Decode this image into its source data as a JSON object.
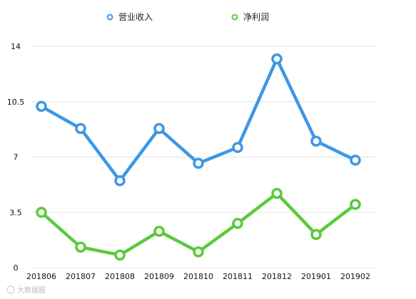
{
  "chart_data": {
    "type": "line",
    "categories": [
      "201806",
      "201807",
      "201808",
      "201809",
      "201810",
      "201811",
      "201812",
      "201901",
      "201902"
    ],
    "series": [
      {
        "name": "营业收入",
        "color": "#3d97e6",
        "values": [
          10.2,
          8.8,
          5.5,
          8.8,
          6.6,
          7.6,
          13.2,
          8.0,
          6.8
        ]
      },
      {
        "name": "净利润",
        "color": "#5cc93a",
        "values": [
          3.5,
          1.3,
          0.8,
          2.3,
          1.0,
          2.8,
          4.7,
          2.1,
          4.0
        ]
      }
    ],
    "yticks": [
      "0",
      "3.5",
      "7",
      "10.5",
      "14"
    ],
    "ylim": [
      0,
      14
    ],
    "grid": "horizontal",
    "legend": "top-center"
  },
  "watermark": {
    "text": "大数据服"
  }
}
